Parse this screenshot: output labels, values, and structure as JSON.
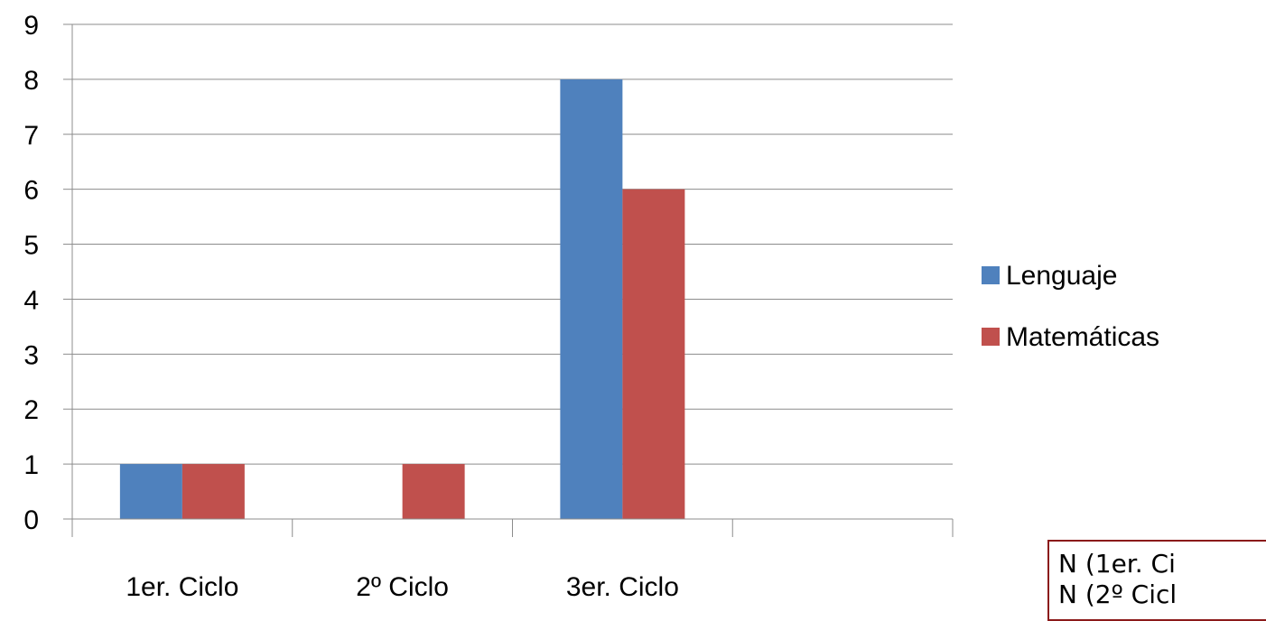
{
  "chart_data": {
    "type": "bar",
    "categories": [
      "1er. Ciclo",
      "2º Ciclo",
      "3er. Ciclo",
      ""
    ],
    "series": [
      {
        "name": "Lenguaje",
        "color": "#4F81BD",
        "values": [
          1,
          0,
          8,
          0
        ]
      },
      {
        "name": "Matemáticas",
        "color": "#C0504D",
        "values": [
          1,
          1,
          6,
          0
        ]
      }
    ],
    "ylim": [
      0,
      9
    ],
    "yticks": [
      0,
      1,
      2,
      3,
      4,
      5,
      6,
      7,
      8,
      9
    ],
    "grid": true,
    "legend": "right"
  },
  "note": {
    "lines": [
      "N (1er. Ci",
      "N (2º Cicl"
    ]
  }
}
